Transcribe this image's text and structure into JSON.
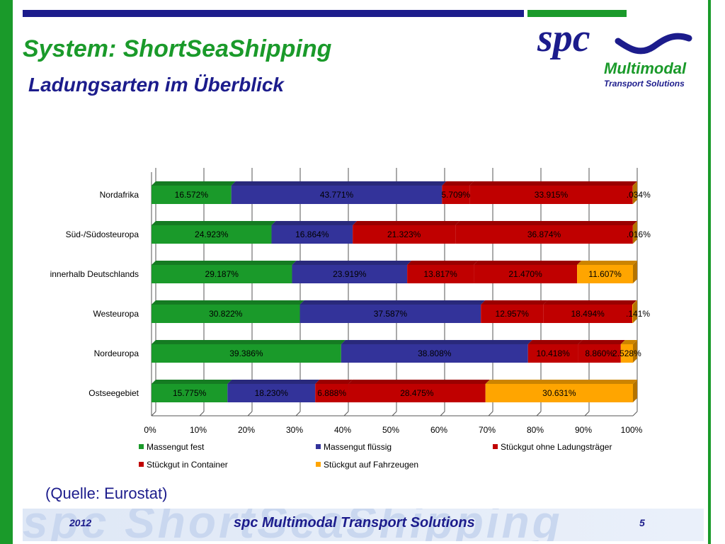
{
  "slide": {
    "title": "System: ShortSeaShipping",
    "subtitle": "Ladungsarten im Überblick",
    "source": "(Quelle: Eurostat)",
    "footer_year": "2012",
    "footer_company": "spc Multimodal Transport Solutions",
    "page_number": "5",
    "watermark": "spc ShortSeaShipping"
  },
  "logo": {
    "wordmark": "spc",
    "line1": "Multimodal",
    "line2": "Transport Solutions",
    "colors": {
      "blue": "#1c1c8c",
      "green": "#1a9a2a"
    }
  },
  "chart_data": {
    "type": "bar",
    "orientation": "horizontal",
    "stacked": "percent",
    "categories": [
      "Nordafrika",
      "Süd-/Südosteuropa",
      "innerhalb Deutschlands",
      "Westeuropa",
      "Nordeuropa",
      "Ostseegebiet"
    ],
    "series": [
      {
        "name": "Massengut fest",
        "color": "#1a9a2a",
        "values": [
          16.572,
          24.923,
          29.187,
          30.822,
          39.386,
          15.775
        ],
        "labels": [
          "16.572%",
          "24.923%",
          "29.187%",
          "30.822%",
          "39.386%",
          "15.775%"
        ]
      },
      {
        "name": "Massengut flüssig",
        "color": "#33339a",
        "values": [
          43.771,
          16.864,
          23.919,
          37.587,
          38.808,
          18.23
        ],
        "labels": [
          "43.771%",
          "16.864%",
          "23.919%",
          "37.587%",
          "38.808%",
          "18.230%"
        ]
      },
      {
        "name": "Stückgut ohne Ladungsträger",
        "color": "#c00000",
        "values": [
          5.709,
          21.323,
          13.817,
          12.957,
          10.418,
          6.888
        ],
        "labels": [
          "5.709%",
          "21.323%",
          "13.817%",
          "12.957%",
          "10.418%",
          "6.888%"
        ]
      },
      {
        "name": "Stückgut in Container",
        "color": "#c00000",
        "values": [
          33.915,
          36.874,
          21.47,
          18.494,
          8.86,
          28.475
        ],
        "labels": [
          "33.915%",
          "36.874%",
          "21.470%",
          "18.494%",
          "8.860%",
          "28.475%"
        ]
      },
      {
        "name": "Stückgut auf Fahrzeugen",
        "color": "#ffa500",
        "values": [
          0.034,
          0.016,
          11.607,
          0.141,
          2.528,
          30.631
        ],
        "labels": [
          ".034%",
          ".016%",
          "11.607%",
          ".141%",
          "2.528%",
          "30.631%"
        ]
      }
    ],
    "xlim": [
      0,
      100
    ],
    "x_ticks": [
      "0%",
      "10%",
      "20%",
      "30%",
      "40%",
      "50%",
      "60%",
      "70%",
      "80%",
      "90%",
      "100%"
    ],
    "grid": true,
    "legend_position": "bottom"
  }
}
